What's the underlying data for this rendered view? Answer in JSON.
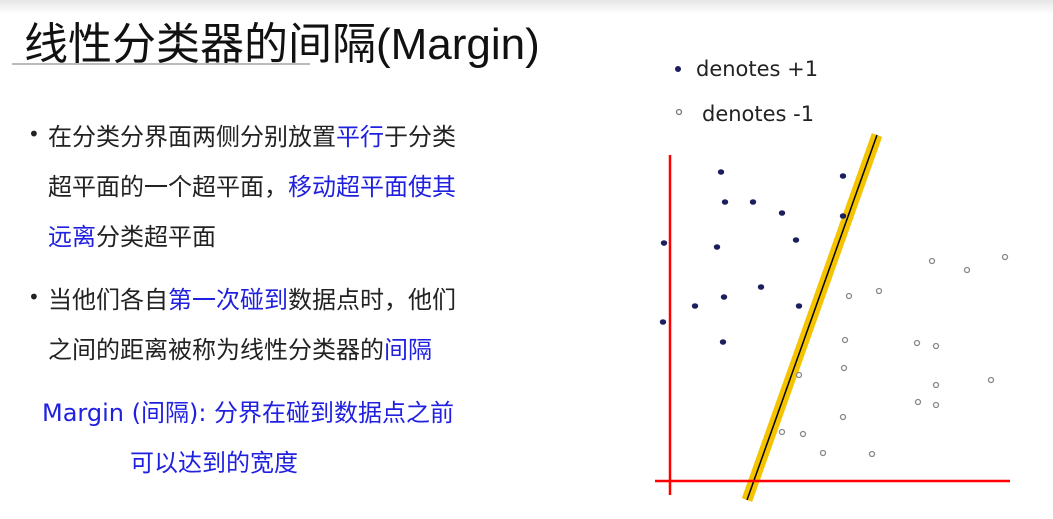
{
  "title": "线性分类器的间隔(Margin)",
  "bullets": [
    {
      "lines": [
        [
          {
            "t": "在分类分界面两侧分别放置",
            "blue": false
          },
          {
            "t": "平行",
            "blue": true
          },
          {
            "t": "于分类",
            "blue": false
          }
        ],
        [
          {
            "t": "超平面的一个超平面，",
            "blue": false
          },
          {
            "t": "移动超平面使其",
            "blue": true
          }
        ],
        [
          {
            "t": "远离",
            "blue": true
          },
          {
            "t": "分类超平面",
            "blue": false
          }
        ]
      ]
    },
    {
      "lines": [
        [
          {
            "t": "当他们各自",
            "blue": false
          },
          {
            "t": "第一次碰到",
            "blue": true
          },
          {
            "t": "数据点时，他们",
            "blue": false
          }
        ],
        [
          {
            "t": "之间的距离被称为线性分类器的",
            "blue": false
          },
          {
            "t": "间隔",
            "blue": true
          }
        ]
      ]
    }
  ],
  "margin_note": {
    "line1": "Margin (间隔): 分界在碰到数据点之前",
    "line2": "可以达到的宽度"
  },
  "legend": {
    "positive": "denotes +1",
    "negative": "denotes -1"
  },
  "colors": {
    "text_blue": "#2020e0",
    "positive_point": "#1c1f5e",
    "axes": "#ff0000",
    "margin_band": "#f5c400",
    "separator": "#000000"
  }
}
